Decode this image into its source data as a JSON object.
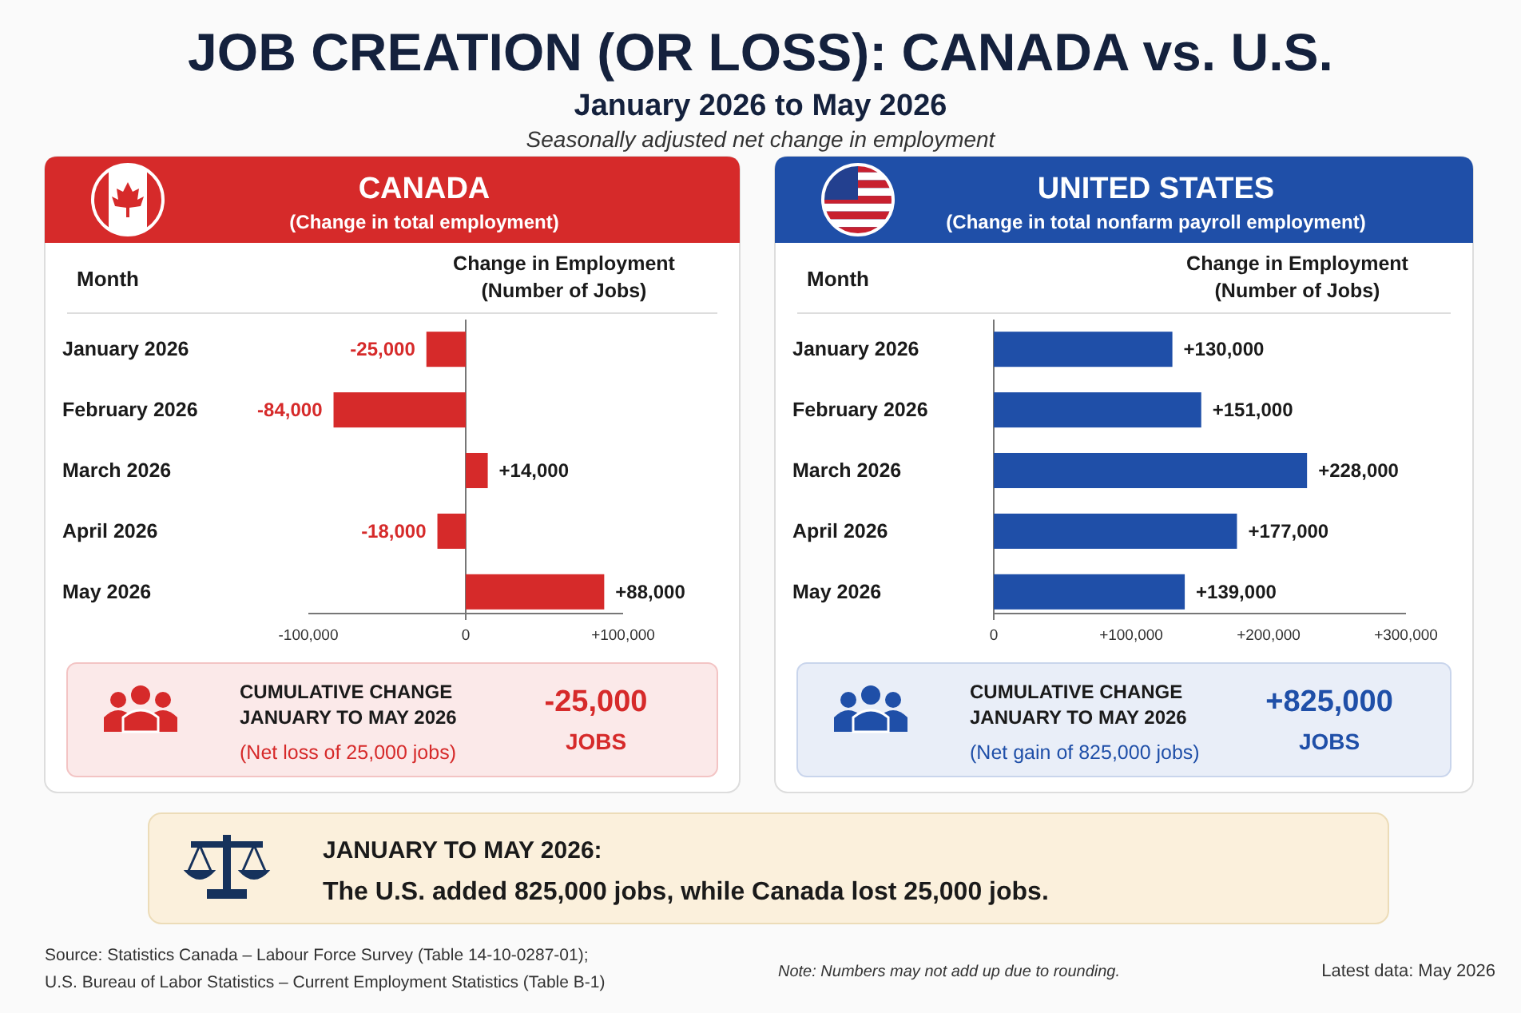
{
  "chart_data": [
    {
      "type": "other",
      "title": "JOB CREATION (OR LOSS): CANADA vs. U.S.",
      "subtitle": "January 2026 to May 2026",
      "annotations": [
        "Seasonally adjusted net change in employment"
      ]
    },
    {
      "type": "bar",
      "orientation": "horizontal",
      "title": "CANADA",
      "subtitle": "(Change in total employment)",
      "ylabel": "Month",
      "xlabel": "Change in Employment\n(Number of Jobs)",
      "categories": [
        "January 2026",
        "February 2026",
        "March 2026",
        "April 2026",
        "May 2026"
      ],
      "series": [
        {
          "color": "#d62a2a",
          "values": [
            -25000,
            -84000,
            14000,
            -18000,
            88000
          ],
          "value_labels": [
            "-25,000",
            "-84,000",
            "+14,000",
            "-18,000",
            "+88,000"
          ]
        }
      ],
      "xlim": [
        -100000,
        100000
      ],
      "xticks": [
        {
          "value": -100000,
          "label": "-100,000"
        },
        0,
        {
          "value": 100000,
          "label": "+100,000"
        }
      ],
      "annotations": [
        "CUMULATIVE CHANGE\nJANUARY TO MAY 2026",
        "(Net loss of 25,000 jobs)",
        "-25,000",
        "JOBS"
      ]
    },
    {
      "type": "bar",
      "orientation": "horizontal",
      "title": "UNITED STATES",
      "subtitle": "(Change in total nonfarm payroll employment)",
      "ylabel": "Month",
      "xlabel": "Change in Employment\n(Number of Jobs)",
      "categories": [
        "January 2026",
        "February 2026",
        "March 2026",
        "April 2026",
        "May 2026"
      ],
      "series": [
        {
          "color": "#1f4fa8",
          "values": [
            130000,
            151000,
            228000,
            177000,
            139000
          ],
          "value_labels": [
            "+130,000",
            "+151,000",
            "+228,000",
            "+177,000",
            "+139,000"
          ]
        }
      ],
      "xlim": [
        0,
        300000
      ],
      "xticks": [
        0,
        {
          "value": 100000,
          "label": "+100,000"
        },
        {
          "value": 200000,
          "label": "+200,000"
        },
        {
          "value": 300000,
          "label": "+300,000"
        }
      ],
      "annotations": [
        "CUMULATIVE CHANGE\nJANUARY TO MAY 2026",
        "(Net gain of 825,000 jobs)",
        "+825,000",
        "JOBS"
      ]
    },
    {
      "type": "other",
      "title": "JANUARY TO MAY 2026:",
      "annotations": [
        "The U.S. added 825,000 jobs, while Canada lost 25,000 jobs.",
        "Source: Statistics Canada – Labour Force Survey (Table 14-10-0287-01);",
        "U.S. Bureau of Labor Statistics – Current Employment Statistics (Table B-1)",
        "Note: Numbers may not add up due to rounding.",
        "Latest data: May 2026"
      ]
    }
  ]
}
